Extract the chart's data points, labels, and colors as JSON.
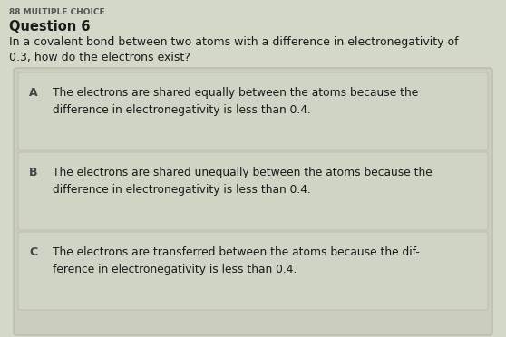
{
  "bg_color": "#d4d8c8",
  "panel_color": "#cbcebe",
  "card_color": "#d0d4c4",
  "header_label": "88 MULTIPLE CHOICE",
  "question_label": "Question 6",
  "question_line1": "In a covalent bond between two atoms with a difference in electronegativity of",
  "question_line2": "0.3, how do the electrons exist?",
  "options": [
    {
      "letter": "A",
      "line1": "The electrons are shared equally between the atoms because the",
      "line2": "difference in electronegativity is less than 0.4."
    },
    {
      "letter": "B",
      "line1": "The electrons are shared unequally between the atoms because the",
      "line2": "difference in electronegativity is less than 0.4."
    },
    {
      "letter": "C",
      "line1": "The electrons are transferred between the atoms because the dif-",
      "line2": "ference in electronegativity is less than 0.4."
    }
  ],
  "header_color": "#555555",
  "question_label_color": "#1a1a1a",
  "question_text_color": "#1a1a1a",
  "option_letter_color": "#444444",
  "option_text_color": "#1a1a1a",
  "fig_width": 5.58,
  "fig_height": 3.72,
  "dpi": 100
}
